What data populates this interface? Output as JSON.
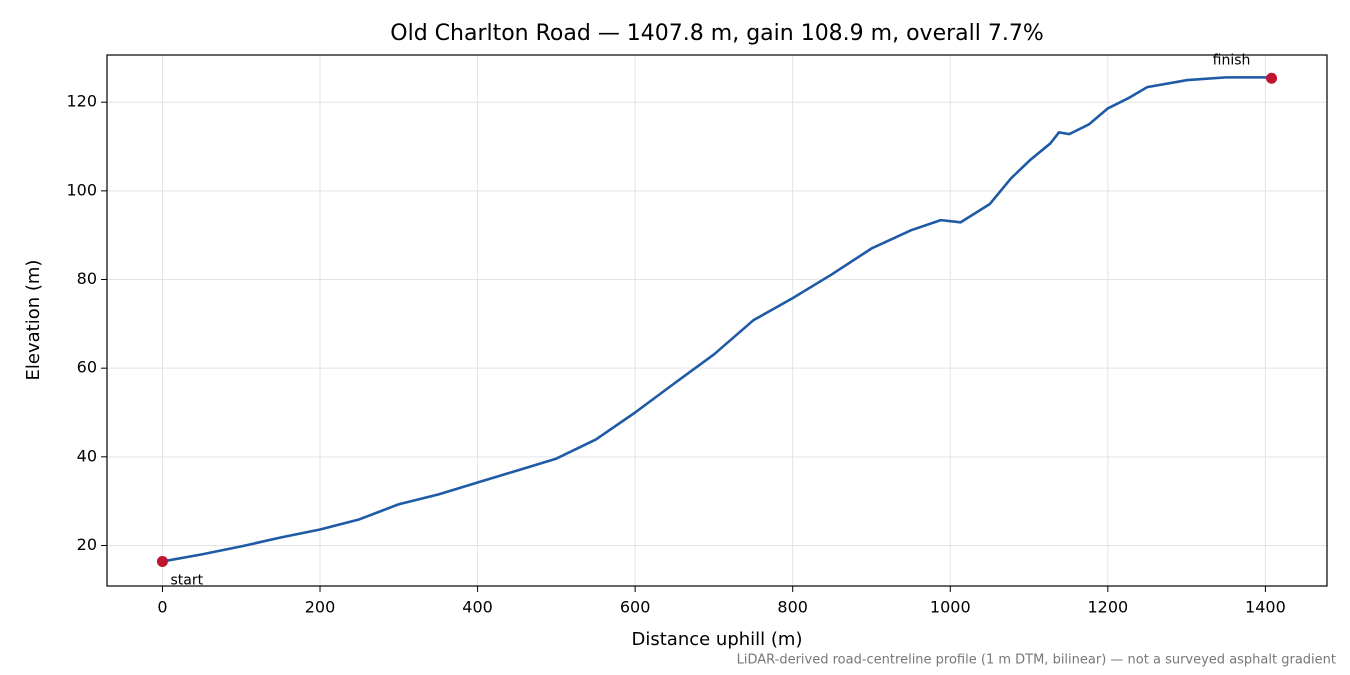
{
  "chart_data": {
    "type": "line",
    "title": "Old Charlton Road — 1407.8 m, gain 108.9 m, overall 7.7%",
    "x_label": "Distance uphill (m)",
    "y_label": "Elevation (m)",
    "footnote": "LiDAR-derived road-centreline profile (1 m DTM, bilinear) — not a surveyed asphalt gradient",
    "start_label": "start",
    "finish_label": "finish",
    "x": [
      0,
      50,
      100,
      150,
      200,
      250,
      300,
      350,
      400,
      450,
      500,
      550,
      600,
      650,
      700,
      750,
      800,
      850,
      900,
      950,
      988,
      1013,
      1050,
      1077,
      1101,
      1127,
      1138,
      1151,
      1176,
      1200,
      1226,
      1250,
      1301,
      1350,
      1400,
      1407.8
    ],
    "series": [
      {
        "color": "#1f5aa6",
        "values": [
          16.4,
          18.0,
          19.8,
          21.8,
          23.6,
          25.9,
          29.3,
          31.5,
          34.2,
          36.9,
          39.6,
          43.9,
          50.0,
          56.6,
          63.1,
          70.8,
          75.8,
          81.2,
          87.0,
          91.1,
          93.4,
          92.9,
          97.0,
          102.8,
          106.9,
          110.7,
          113.2,
          112.8,
          115.0,
          118.6,
          120.9,
          123.4,
          125.0,
          125.6,
          125.6,
          125.4
        ]
      }
    ],
    "marker_color": "#c0152f",
    "xlim": [
      -70.39,
      1478.19
    ],
    "ylim": [
      10.86,
      130.65
    ],
    "xticks": [
      0,
      200,
      400,
      600,
      800,
      1000,
      1200,
      1400
    ],
    "yticks": [
      20,
      40,
      60,
      80,
      100,
      120
    ],
    "grid": true
  }
}
